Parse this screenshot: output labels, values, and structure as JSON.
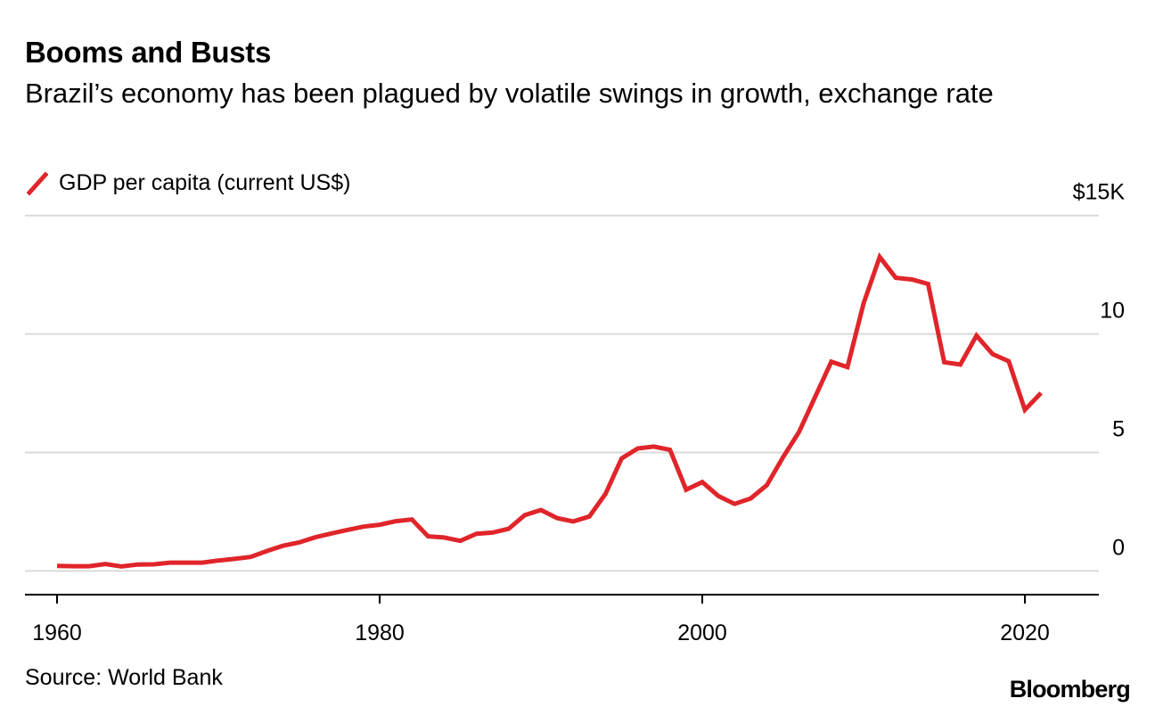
{
  "title": "Booms and Busts",
  "subtitle": "Brazil’s economy has been plagued by volatile swings in growth, exchange rate",
  "legend": {
    "label": "GDP per capita (current US$)",
    "color": "#e0252a"
  },
  "source": "Source: World Bank",
  "brand": "Bloomberg",
  "chart_data": {
    "type": "line",
    "title": "Booms and Busts",
    "xlabel": "",
    "ylabel": "GDP per capita (current US$)",
    "xlim": [
      1959,
      2023
    ],
    "ylim": [
      -1,
      15
    ],
    "x_ticks": [
      1960,
      1980,
      2000,
      2020
    ],
    "x_tick_labels": [
      "1960",
      "1980",
      "2000",
      "2020"
    ],
    "y_ticks": [
      0,
      5,
      10,
      15
    ],
    "y_tick_labels": [
      "0",
      "5",
      "10",
      "$15K"
    ],
    "grid": true,
    "series": [
      {
        "name": "GDP per capita (current US$)",
        "color": "#e0252a",
        "x": [
          1960,
          1961,
          1962,
          1963,
          1964,
          1965,
          1966,
          1967,
          1968,
          1969,
          1970,
          1971,
          1972,
          1973,
          1974,
          1975,
          1976,
          1977,
          1978,
          1979,
          1980,
          1981,
          1982,
          1983,
          1984,
          1985,
          1986,
          1987,
          1988,
          1989,
          1990,
          1991,
          1992,
          1993,
          1994,
          1995,
          1996,
          1997,
          1998,
          1999,
          2000,
          2001,
          2002,
          2003,
          2004,
          2005,
          2006,
          2007,
          2008,
          2009,
          2010,
          2011,
          2012,
          2013,
          2014,
          2015,
          2016,
          2017,
          2018,
          2019,
          2020,
          2021
        ],
        "values": [
          0.21,
          0.2,
          0.2,
          0.29,
          0.19,
          0.27,
          0.28,
          0.35,
          0.35,
          0.35,
          0.44,
          0.51,
          0.59,
          0.84,
          1.06,
          1.2,
          1.42,
          1.58,
          1.73,
          1.87,
          1.95,
          2.1,
          2.17,
          1.46,
          1.41,
          1.27,
          1.57,
          1.62,
          1.78,
          2.36,
          2.57,
          2.23,
          2.09,
          2.3,
          3.25,
          4.75,
          5.17,
          5.25,
          5.11,
          3.43,
          3.75,
          3.16,
          2.83,
          3.06,
          3.62,
          4.79,
          5.87,
          7.35,
          8.83,
          8.6,
          11.29,
          13.25,
          12.37,
          12.3,
          12.11,
          8.81,
          8.71,
          9.93,
          9.15,
          8.85,
          6.8,
          7.51
        ]
      }
    ]
  }
}
